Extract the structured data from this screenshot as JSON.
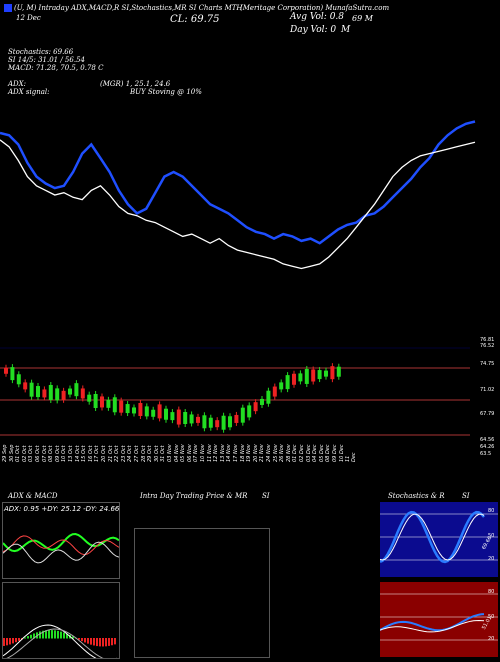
{
  "header": {
    "ticker_line": "(U, M) Intraday ADX,MACD,R SI,Stochastics,MR SI Charts MTH",
    "company_line": "(Meritage Corporation) MunafaSutra.com",
    "close_label": "CL: 69.75",
    "legend_date": "12 Dec",
    "legend_marker_color": "#1f3fff",
    "avg_vol": "Avg Vol: 0.8",
    "avg_vol_value": "69 M",
    "day_vol": "Day Vol: 0",
    "day_vol_unit": "M"
  },
  "indicators": {
    "stochastics": "Stochastics: 69.66",
    "rsi": "SI 14/5: 31.01 / 56.54",
    "macd": "MACD: 71.28, 70.5, 0.78  C",
    "adx": "ADX:",
    "adx_values": "(MGR) 1, 25.1, 24.6",
    "adx_signal": "ADX signal:",
    "buy_signal": "BUY Stoving @ 10%"
  },
  "price_axis": {
    "labels": [
      "76.81",
      "76.52",
      "74.75",
      "71.02",
      "67.79",
      "64.56",
      "64.26",
      "63.5"
    ]
  },
  "dates": [
    "29 Sep",
    "30 Sep",
    "01 Oct",
    "02 Oct",
    "03 Oct",
    "06 Oct",
    "07 Oct",
    "08 Oct",
    "09 Oct",
    "10 Oct",
    "13 Oct",
    "14 Oct",
    "15 Oct",
    "16 Oct",
    "17 Oct",
    "20 Oct",
    "21 Oct",
    "22 Oct",
    "23 Oct",
    "24 Oct",
    "27 Oct",
    "28 Oct",
    "29 Oct",
    "30 Oct",
    "31 Oct",
    "03 Nov",
    "04 Nov",
    "05 Nov",
    "06 Nov",
    "07 Nov",
    "10 Nov",
    "11 Nov",
    "12 Nov",
    "13 Nov",
    "14 Nov",
    "17 Nov",
    "18 Nov",
    "19 Nov",
    "20 Nov",
    "21 Nov",
    "24 Nov",
    "25 Nov",
    "26 Nov",
    "28 Nov",
    "01 Dec",
    "02 Dec",
    "03 Dec",
    "04 Dec",
    "05 Dec",
    "08 Dec",
    "09 Dec",
    "10 Dec",
    "11 Dec"
  ],
  "panels": {
    "adx_title": "ADX  & MACD",
    "adx_readout": "ADX: 0.95  +DY: 25.12  -DY: 24.66",
    "intraday_title": "Intra  Day Trading Price  & MR",
    "intraday_title2": "SI",
    "stoch_title": "Stochastics & R",
    "stoch_title2": "SI",
    "stoch_levels": [
      "80",
      "50",
      "20"
    ],
    "rsi_levels": [
      "80",
      "50",
      "20"
    ],
    "stoch_value_label": "69.66",
    "rsi_value_label": "51.01"
  },
  "chart_data": {
    "type": "line",
    "title": "",
    "xlabel": "",
    "ylabel": "",
    "series": [
      {
        "values": [
          72.1,
          72.0,
          71.6,
          70.8,
          70.2,
          69.9,
          69.7,
          69.8,
          70.4,
          71.2,
          71.6,
          71.0,
          70.4,
          69.6,
          69.0,
          68.6,
          68.8,
          69.5,
          70.2,
          70.4,
          70.2,
          69.8,
          69.4,
          69.0,
          68.8,
          68.6,
          68.3,
          68.0,
          67.8,
          67.7,
          67.5,
          67.7,
          67.6,
          67.4,
          67.5,
          67.3,
          67.6,
          67.9,
          68.1,
          68.2,
          68.5,
          68.6,
          68.9,
          69.3,
          69.7,
          70.1,
          70.6,
          71.0,
          71.6,
          72.0,
          72.3,
          72.5,
          72.6
        ]
      },
      {
        "values": [
          71.8,
          71.5,
          70.9,
          70.2,
          69.8,
          69.6,
          69.4,
          69.5,
          69.3,
          69.2,
          69.6,
          69.8,
          69.4,
          68.9,
          68.6,
          68.5,
          68.3,
          68.2,
          68.0,
          67.8,
          67.6,
          67.7,
          67.5,
          67.3,
          67.5,
          67.2,
          67.0,
          66.9,
          66.8,
          66.7,
          66.6,
          66.4,
          66.3,
          66.2,
          66.3,
          66.4,
          66.7,
          67.1,
          67.5,
          68.0,
          68.5,
          69.0,
          69.6,
          70.2,
          70.6,
          70.9,
          71.1,
          71.2,
          71.3,
          71.4,
          71.5,
          71.6,
          71.7
        ]
      }
    ]
  }
}
